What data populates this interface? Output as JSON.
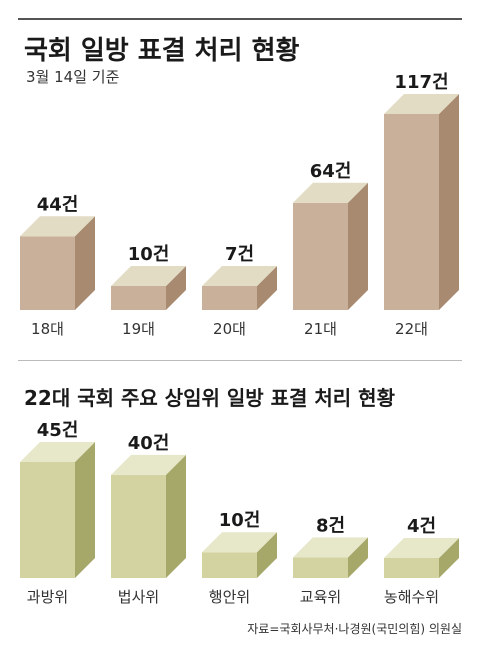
{
  "chart_data": [
    {
      "type": "bar",
      "title": "국회 일방 표결 처리 현황",
      "subtitle": "3월 14일 기준",
      "categories": [
        "18대",
        "19대",
        "20대",
        "21대",
        "22대"
      ],
      "values": [
        44,
        10,
        7,
        64,
        117
      ],
      "value_labels": [
        "44건",
        "10건",
        "7건",
        "64건",
        "117건"
      ],
      "ylim": [
        0,
        117
      ],
      "grid": false,
      "colors": {
        "front": "#c9b09a",
        "side": "#a88a70",
        "top": "#e3dcc4"
      }
    },
    {
      "type": "bar",
      "title": "22대 국회 주요 상임위 일방 표결 처리 현황",
      "categories": [
        "과방위",
        "법사위",
        "행안위",
        "교육위",
        "농해수위"
      ],
      "values": [
        45,
        40,
        10,
        8,
        4
      ],
      "value_labels": [
        "45건",
        "40건",
        "10건",
        "8건",
        "4건"
      ],
      "ylim": [
        0,
        45
      ],
      "grid": false,
      "colors": {
        "front": "#d3d3a2",
        "side": "#a5a869",
        "top": "#e7e7c9"
      }
    }
  ],
  "source": "자료=국회사무처·나경원(국민의힘) 의원실"
}
